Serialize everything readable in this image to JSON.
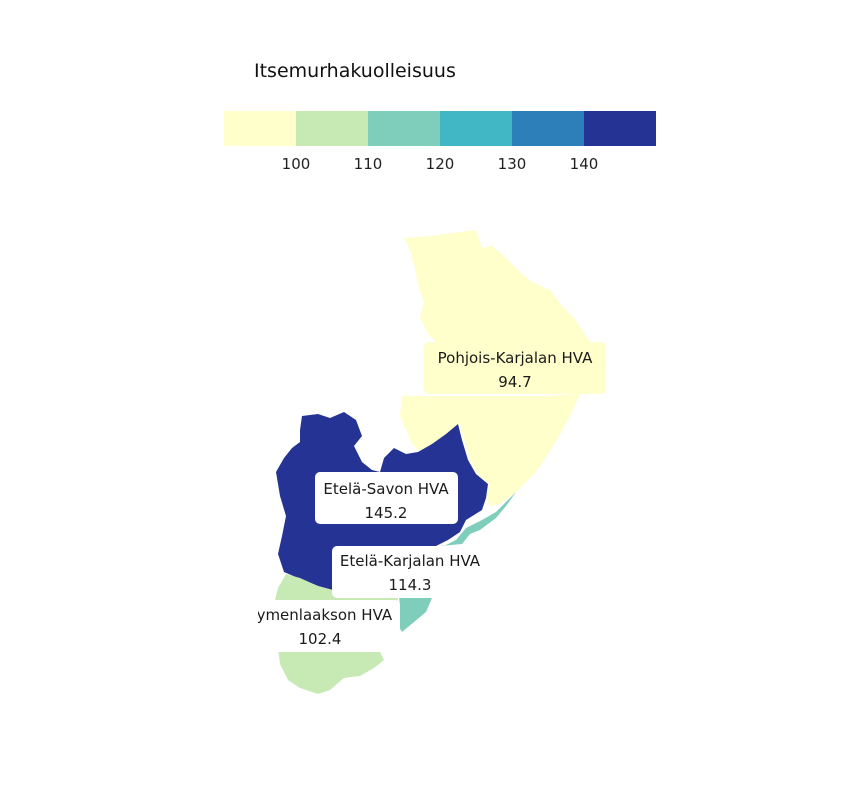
{
  "legend": {
    "title": "Itsemurhakuolleisuus",
    "ticks": [
      "100",
      "110",
      "120",
      "130",
      "140"
    ],
    "colors": [
      "#ffffcc",
      "#c7e9b4",
      "#7fcdbb",
      "#41b6c4",
      "#2c7fb8",
      "#253494"
    ]
  },
  "regions": [
    {
      "id": "pohjois-karjala",
      "name": "Pohjois-Karjalan HVA",
      "value": "94.7",
      "color": "#ffffcc"
    },
    {
      "id": "etela-savo",
      "name": "Etelä-Savon HVA",
      "value": "145.2",
      "color": "#253494"
    },
    {
      "id": "etela-karjala",
      "name": "Etelä-Karjalan HVA",
      "value": "114.3",
      "color": "#7fcdbb"
    },
    {
      "id": "kymenlaakso",
      "name": "Kymenlaakson HVA",
      "value": "102.4",
      "color": "#c7e9b4"
    }
  ]
}
